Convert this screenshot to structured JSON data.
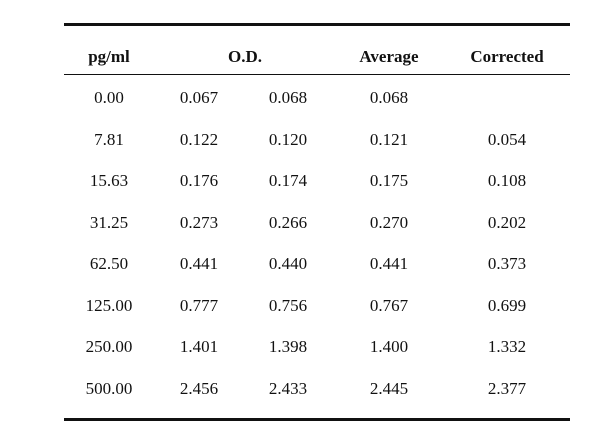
{
  "table": {
    "headers": {
      "concentration": "pg/ml",
      "od": "O.D.",
      "average": "Average",
      "corrected": "Corrected"
    },
    "rows": [
      [
        "0.00",
        "0.067",
        "0.068",
        "0.068",
        ""
      ],
      [
        "7.81",
        "0.122",
        "0.120",
        "0.121",
        "0.054"
      ],
      [
        "15.63",
        "0.176",
        "0.174",
        "0.175",
        "0.108"
      ],
      [
        "31.25",
        "0.273",
        "0.266",
        "0.270",
        "0.202"
      ],
      [
        "62.50",
        "0.441",
        "0.440",
        "0.441",
        "0.373"
      ],
      [
        "125.00",
        "0.777",
        "0.756",
        "0.767",
        "0.699"
      ],
      [
        "250.00",
        "1.401",
        "1.398",
        "1.400",
        "1.332"
      ],
      [
        "500.00",
        "2.456",
        "2.433",
        "2.445",
        "2.377"
      ]
    ]
  }
}
